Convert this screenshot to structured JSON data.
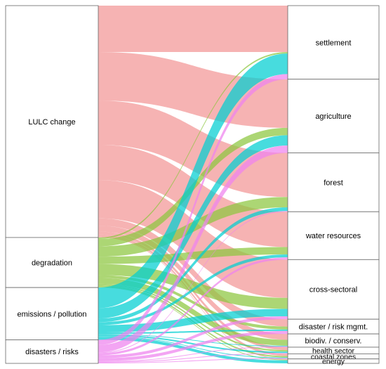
{
  "diagram": {
    "left_nodes": [
      {
        "id": "lulc",
        "label": "LULC change"
      },
      {
        "id": "deg",
        "label": "degradation"
      },
      {
        "id": "emis",
        "label": "emissions / pollution"
      },
      {
        "id": "dis",
        "label": "disasters / risks"
      }
    ],
    "right_nodes": [
      {
        "id": "sett",
        "label": "settlement"
      },
      {
        "id": "agri",
        "label": "agriculture"
      },
      {
        "id": "forest",
        "label": "forest"
      },
      {
        "id": "water",
        "label": "water resources"
      },
      {
        "id": "cross",
        "label": "cross-sectoral"
      },
      {
        "id": "drm",
        "label": "disaster / risk mgmt."
      },
      {
        "id": "bio",
        "label": "biodiv. / conserv."
      },
      {
        "id": "health",
        "label": "health sector"
      },
      {
        "id": "coast",
        "label": "coastal zones"
      },
      {
        "id": "energy",
        "label": "energy"
      }
    ],
    "flows": [
      {
        "source": "lulc",
        "target": "sett",
        "value": 63
      },
      {
        "source": "lulc",
        "target": "agri",
        "value": 66
      },
      {
        "source": "lulc",
        "target": "forest",
        "value": 60
      },
      {
        "source": "lulc",
        "target": "water",
        "value": 48
      },
      {
        "source": "lulc",
        "target": "cross",
        "value": 52
      },
      {
        "source": "lulc",
        "target": "drm",
        "value": 10
      },
      {
        "source": "lulc",
        "target": "bio",
        "value": 8
      },
      {
        "source": "lulc",
        "target": "health",
        "value": 4
      },
      {
        "source": "lulc",
        "target": "coast",
        "value": 3
      },
      {
        "source": "lulc",
        "target": "energy",
        "value": 1
      },
      {
        "source": "deg",
        "target": "sett",
        "value": 2
      },
      {
        "source": "deg",
        "target": "agri",
        "value": 10
      },
      {
        "source": "deg",
        "target": "forest",
        "value": 14
      },
      {
        "source": "deg",
        "target": "water",
        "value": 10
      },
      {
        "source": "deg",
        "target": "cross",
        "value": 15
      },
      {
        "source": "deg",
        "target": "drm",
        "value": 4
      },
      {
        "source": "deg",
        "target": "bio",
        "value": 8
      },
      {
        "source": "deg",
        "target": "health",
        "value": 2
      },
      {
        "source": "deg",
        "target": "coast",
        "value": 2
      },
      {
        "source": "deg",
        "target": "energy",
        "value": 1
      },
      {
        "source": "emis",
        "target": "sett",
        "value": 28
      },
      {
        "source": "emis",
        "target": "agri",
        "value": 14
      },
      {
        "source": "emis",
        "target": "forest",
        "value": 5
      },
      {
        "source": "emis",
        "target": "water",
        "value": 4
      },
      {
        "source": "emis",
        "target": "cross",
        "value": 10
      },
      {
        "source": "emis",
        "target": "drm",
        "value": 2
      },
      {
        "source": "emis",
        "target": "bio",
        "value": 1
      },
      {
        "source": "emis",
        "target": "health",
        "value": 2
      },
      {
        "source": "emis",
        "target": "coast",
        "value": 1
      },
      {
        "source": "emis",
        "target": "energy",
        "value": 4
      },
      {
        "source": "dis",
        "target": "sett",
        "value": 7
      },
      {
        "source": "dis",
        "target": "agri",
        "value": 10
      },
      {
        "source": "dis",
        "target": "forest",
        "value": 1
      },
      {
        "source": "dis",
        "target": "water",
        "value": 3
      },
      {
        "source": "dis",
        "target": "cross",
        "value": 4
      },
      {
        "source": "dis",
        "target": "drm",
        "value": 4
      },
      {
        "source": "dis",
        "target": "bio",
        "value": 1
      },
      {
        "source": "dis",
        "target": "health",
        "value": 1
      },
      {
        "source": "dis",
        "target": "coast",
        "value": 1
      }
    ],
    "colors": {
      "lulc": "#f08080",
      "deg": "#8cc63f",
      "emis": "#00ced1",
      "dis": "#ee82ee",
      "node_border": "#666666",
      "node_fill": "#ffffff"
    }
  }
}
